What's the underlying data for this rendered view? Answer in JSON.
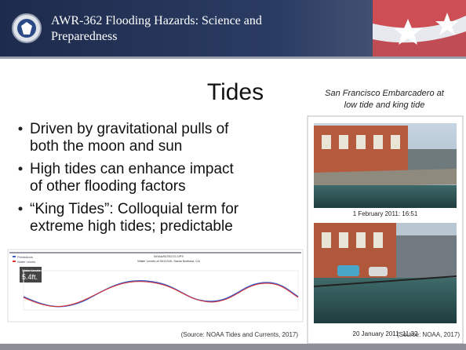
{
  "header": {
    "title_line1": "AWR-362 Flooding Hazards: Science and",
    "title_line2": "Preparedness"
  },
  "slide": {
    "title": "Tides",
    "bullets": [
      [
        "Driven by gravitational pulls of",
        "both the moon and sun"
      ],
      [
        "High tides can enhance impact",
        "of other flooding factors"
      ],
      [
        "“King Tides”: Colloquial term for",
        "extreme high tides; predictable"
      ]
    ],
    "photo_caption": [
      "San Francisco Embarcadero at",
      "low tide and king tide"
    ],
    "photos": [
      {
        "caption": "1 February 2011: 16:51"
      },
      {
        "caption": "20 January 2011: 11:32"
      }
    ],
    "photo_source": "(Source: NOAA, 2017)",
    "chart_image": {
      "heading": "NOAA/NOS/CO-OPS",
      "subheading": "Water Levels at 9411340, Santa Barbara, CA",
      "legend": [
        "Predictions",
        "Water Levels"
      ],
      "badge_title": "Water Levels",
      "badge_value": "5.4ft."
    },
    "chart_source": "(Source: NOAA Tides and Currents, 2017)",
    "page_number": "2-18"
  }
}
